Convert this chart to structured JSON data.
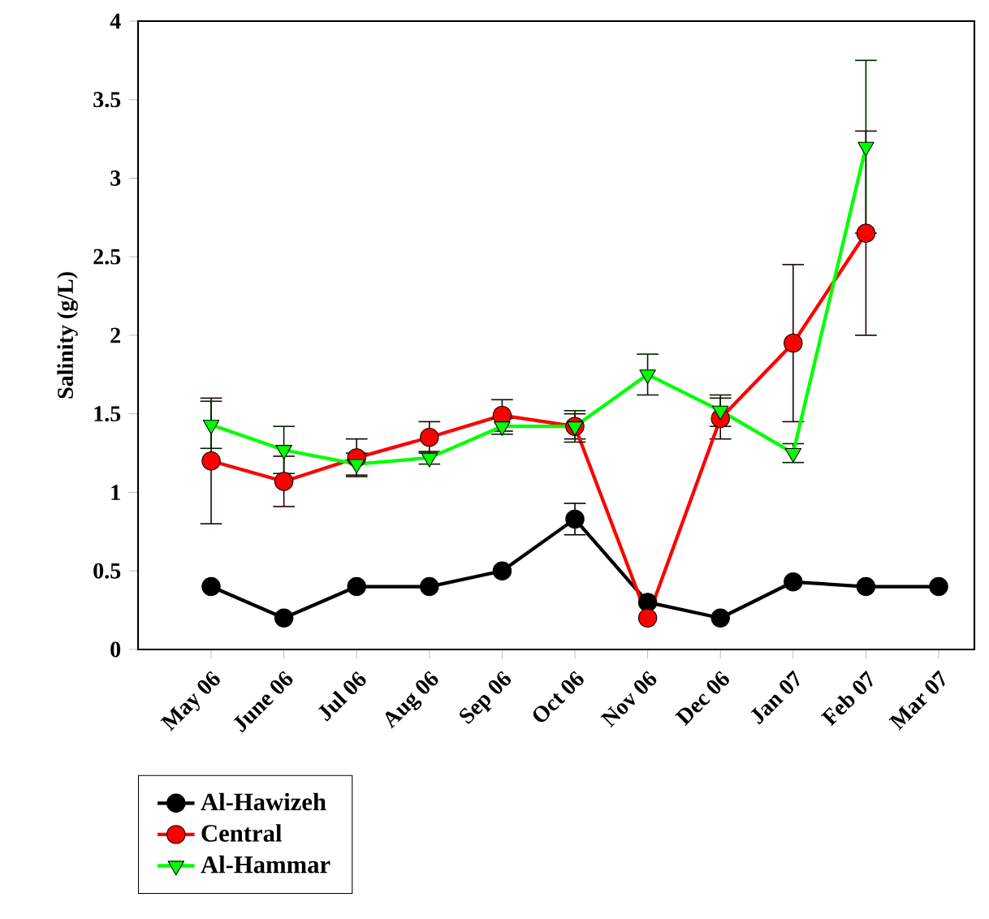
{
  "chart_data": {
    "type": "line",
    "ylabel": "Salinity (g/L)",
    "categories": [
      "May 06",
      "June 06",
      "Jul 06",
      "Aug 06",
      "Sep 06",
      "Oct 06",
      "Nov 06",
      "Dec 06",
      "Jan 07",
      "Feb 07",
      "Mar 07"
    ],
    "series": [
      {
        "name": "Al-Hawizeh",
        "color": "#000000",
        "marker": "circle",
        "values": [
          0.4,
          0.2,
          0.4,
          0.4,
          0.5,
          0.83,
          0.3,
          0.2,
          0.43,
          0.4,
          0.4
        ],
        "errors": [
          null,
          null,
          null,
          null,
          null,
          0.1,
          null,
          null,
          null,
          null,
          null
        ]
      },
      {
        "name": "Central",
        "color": "#ff0000",
        "marker": "circle",
        "values": [
          1.2,
          1.07,
          1.22,
          1.35,
          1.49,
          1.42,
          0.2,
          1.47,
          1.95,
          2.65,
          null
        ],
        "errors": [
          0.4,
          0.16,
          0.12,
          0.1,
          0.1,
          0.08,
          null,
          0.13,
          0.5,
          0.65,
          null
        ]
      },
      {
        "name": "Al-Hammar",
        "color": "#00ff00",
        "marker": "triangle",
        "values": [
          1.43,
          1.27,
          1.18,
          1.22,
          1.42,
          1.42,
          1.75,
          1.52,
          1.25,
          3.2,
          null
        ],
        "errors": [
          0.15,
          0.15,
          0.07,
          0.04,
          0.05,
          0.1,
          0.13,
          0.1,
          0.06,
          0.55,
          null
        ]
      }
    ],
    "ylim": [
      0,
      4
    ],
    "yticks": [
      0,
      0.5,
      1,
      1.5,
      2,
      2.5,
      3,
      3.5,
      4
    ],
    "legend": "bottom left",
    "grid": false,
    "line_style": "solid"
  }
}
